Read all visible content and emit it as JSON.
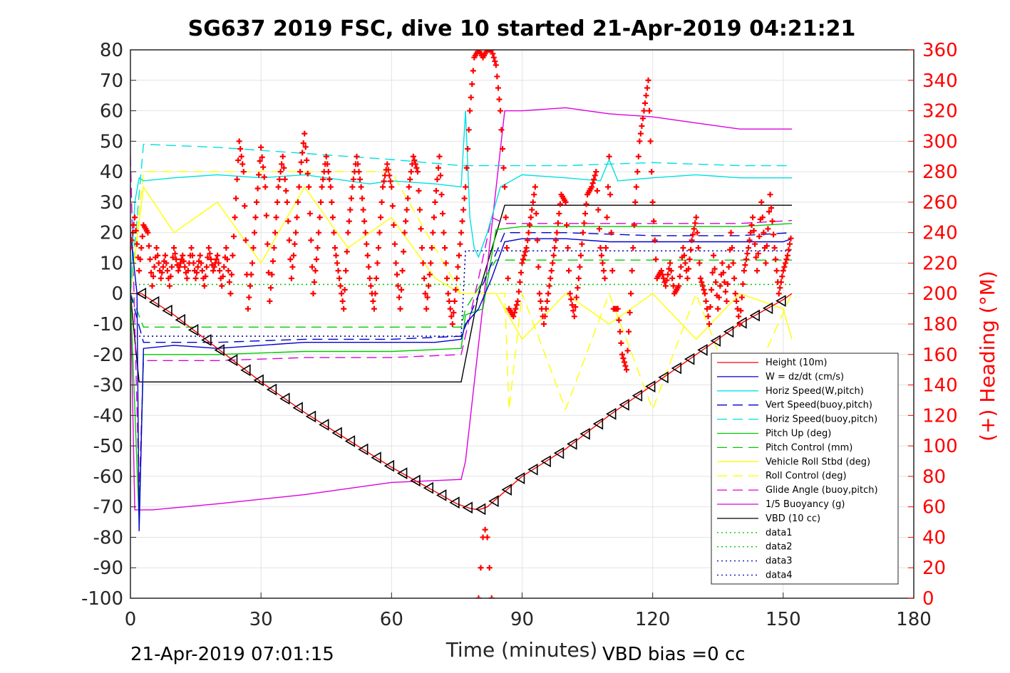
{
  "chart_data": {
    "type": "line",
    "title": "SG637 2019 FSC, dive 10 started 21-Apr-2019 04:21:21",
    "xlabel": "Time (minutes)",
    "ylabel_right": "(+) Heading (°M)",
    "xlim": [
      0,
      180
    ],
    "ylim": [
      -100,
      80
    ],
    "ylim_right": [
      0,
      360
    ],
    "x_ticks": [
      "0",
      "30",
      "60",
      "90",
      "120",
      "150",
      "180"
    ],
    "y_ticks": [
      "80",
      "70",
      "60",
      "50",
      "40",
      "30",
      "20",
      "10",
      "0",
      "-10",
      "-20",
      "-30",
      "-40",
      "-50",
      "-60",
      "-70",
      "-80",
      "-90",
      "-100"
    ],
    "y_ticks_right": [
      "360",
      "340",
      "320",
      "300",
      "280",
      "260",
      "240",
      "220",
      "200",
      "180",
      "160",
      "140",
      "120",
      "100",
      "80",
      "60",
      "40",
      "20",
      "0"
    ],
    "grid": true,
    "legend_position": "bottom-right",
    "footer_left": "21-Apr-2019 07:01:15",
    "footer_right": "VBD bias =0 cc",
    "series": [
      {
        "name": "Height (10m)",
        "color": "#ff0000",
        "style": "solid",
        "marker": "triangle",
        "x": [
          0,
          2.5,
          10,
          20,
          30,
          40,
          50,
          60,
          70,
          75,
          78,
          80,
          82,
          86,
          90,
          100,
          110,
          120,
          130,
          140,
          150,
          152
        ],
        "y": [
          0,
          0,
          -7,
          -18,
          -29,
          -39,
          -48,
          -57,
          -65,
          -69,
          -70.5,
          -71,
          -70,
          -65,
          -60,
          -51,
          -40,
          -30,
          -20,
          -10,
          -2,
          0
        ]
      },
      {
        "name": "W = dz/dt (cm/s)",
        "color": "#0000cc",
        "style": "solid",
        "x": [
          0,
          1.5,
          2,
          3,
          10,
          20,
          30,
          40,
          50,
          60,
          70,
          76,
          77,
          80,
          83,
          86,
          90,
          100,
          110,
          120,
          130,
          140,
          150,
          152
        ],
        "y": [
          20,
          0,
          -78,
          -18,
          -17,
          -18,
          -17,
          -16,
          -16,
          -16,
          -16,
          -15,
          -10,
          -5,
          5,
          17,
          18,
          18,
          17,
          17,
          17,
          17,
          17,
          18
        ]
      },
      {
        "name": "Horiz Speed(W,pitch)",
        "color": "#00e0e0",
        "style": "solid",
        "x": [
          0,
          1,
          2,
          3,
          10,
          20,
          30,
          40,
          50,
          55,
          60,
          70,
          76,
          77,
          78,
          79,
          80,
          82,
          85,
          90,
          100,
          108,
          110,
          112,
          120,
          130,
          140,
          150,
          152
        ],
        "y": [
          0,
          30,
          38,
          37,
          38,
          39,
          38,
          39,
          37,
          36,
          37,
          36,
          35,
          60,
          25,
          15,
          12,
          20,
          35,
          39,
          38,
          37,
          44,
          37,
          38,
          39,
          38,
          38,
          38
        ]
      },
      {
        "name": "Vert Speed(buoy,pitch)",
        "color": "#0000cc",
        "style": "dashed",
        "x": [
          0,
          3,
          20,
          40,
          60,
          76,
          86,
          100,
          120,
          140,
          152
        ],
        "y": [
          0,
          -16,
          -16,
          -15,
          -15,
          -14,
          20,
          20,
          19,
          19,
          20
        ]
      },
      {
        "name": "Horiz Speed(buoy,pitch)",
        "color": "#00e0e0",
        "style": "dashed",
        "x": [
          0,
          3,
          20,
          40,
          60,
          76,
          86,
          100,
          120,
          140,
          152
        ],
        "y": [
          0,
          49,
          48,
          46,
          44,
          42,
          42,
          42,
          43,
          42,
          42
        ]
      },
      {
        "name": "Pitch Up (deg)",
        "color": "#00cc00",
        "style": "solid",
        "x": [
          0,
          2,
          3,
          20,
          40,
          60,
          76,
          77,
          81,
          84,
          90,
          100,
          120,
          140,
          152
        ],
        "y": [
          0,
          -75,
          -20,
          -20,
          -19,
          -19,
          -18,
          -7,
          -5,
          21,
          22,
          22,
          22,
          22,
          23
        ]
      },
      {
        "name": "Pitch Control (mm)",
        "color": "#00cc00",
        "style": "dashed",
        "x": [
          0,
          3,
          76,
          77,
          84,
          152
        ],
        "y": [
          0,
          -11,
          -11,
          -5,
          11,
          11
        ]
      },
      {
        "name": "Vehicle Roll Stbd (deg)",
        "color": "#ffff00",
        "style": "solid",
        "x": [
          0,
          3,
          10,
          20,
          30,
          40,
          50,
          60,
          70,
          76,
          84,
          90,
          100,
          110,
          120,
          130,
          140,
          150,
          152
        ],
        "y": [
          0,
          35,
          20,
          30,
          10,
          35,
          15,
          25,
          5,
          0,
          0,
          -15,
          0,
          -10,
          0,
          -15,
          0,
          -5,
          -15
        ]
      },
      {
        "name": "Roll Control (deg)",
        "color": "#ffff00",
        "style": "dashed",
        "x": [
          0,
          3,
          20,
          40,
          60,
          76,
          86,
          87,
          90,
          100,
          110,
          120,
          130,
          140,
          152
        ],
        "y": [
          0,
          40,
          40,
          40,
          40,
          0,
          0,
          -38,
          0,
          -38,
          0,
          -38,
          0,
          -38,
          0
        ]
      },
      {
        "name": "Glide Angle (buoy,pitch)",
        "color": "#dd00dd",
        "style": "dashed",
        "x": [
          0,
          2,
          3,
          20,
          40,
          60,
          76,
          80,
          83,
          86,
          100,
          120,
          140,
          152
        ],
        "y": [
          45,
          -65,
          -22,
          -22,
          -21,
          -21,
          -20,
          5,
          25,
          23,
          23,
          23,
          23,
          24
        ]
      },
      {
        "name": "1/5 Buoyancy (g)",
        "color": "#dd00dd",
        "style": "solid",
        "x": [
          0,
          1,
          2,
          5,
          20,
          40,
          60,
          76,
          77,
          86,
          90,
          100,
          110,
          120,
          130,
          140,
          152
        ],
        "y": [
          0,
          -71,
          -71,
          -71,
          -69,
          -66,
          -62,
          -61,
          -55,
          60,
          60,
          61,
          59,
          58,
          56,
          54,
          54
        ]
      },
      {
        "name": "VBD (10 cc)",
        "color": "#000000",
        "style": "solid",
        "x": [
          0,
          1,
          2,
          3,
          30,
          60,
          76,
          80,
          86,
          100,
          120,
          140,
          152
        ],
        "y": [
          0,
          -15,
          -29,
          -29,
          -29,
          -29,
          -29,
          0,
          29,
          29,
          29,
          29,
          29
        ]
      },
      {
        "name": "data1",
        "color": "#00cc00",
        "style": "dotted",
        "x": [
          0,
          152
        ],
        "y": [
          3,
          3
        ]
      },
      {
        "name": "data2",
        "color": "#00cc00",
        "style": "dotted",
        "x": [
          0,
          152
        ],
        "y": [
          3,
          3
        ]
      },
      {
        "name": "data3",
        "color": "#0000aa",
        "style": "dotted",
        "x": [
          0,
          76,
          77,
          86,
          152
        ],
        "y": [
          -14,
          -14,
          14,
          14,
          14
        ]
      },
      {
        "name": "data4",
        "color": "#0000aa",
        "style": "dotted",
        "x": [
          0,
          76,
          77,
          86,
          152
        ],
        "y": [
          -14,
          -14,
          14,
          14,
          14
        ]
      }
    ],
    "heading_series": {
      "name": "Heading",
      "color": "#ff0000",
      "marker": "+",
      "axis": "right",
      "x": [
        0,
        1,
        2,
        3,
        4,
        5,
        6,
        7,
        8,
        9,
        10,
        11,
        12,
        13,
        14,
        15,
        16,
        17,
        18,
        19,
        20,
        21,
        22,
        23,
        24,
        25,
        26,
        27,
        28,
        29,
        30,
        31,
        32,
        33,
        34,
        35,
        36,
        37,
        38,
        39,
        40,
        41,
        42,
        43,
        44,
        45,
        46,
        47,
        48,
        49,
        50,
        51,
        52,
        53,
        54,
        55,
        56,
        57,
        58,
        59,
        60,
        61,
        62,
        63,
        64,
        65,
        66,
        67,
        68,
        69,
        70,
        71,
        72,
        73,
        74,
        75,
        76,
        77,
        78,
        79,
        80,
        81,
        82,
        83,
        84,
        85,
        86,
        87,
        88,
        89,
        90,
        91,
        92,
        93,
        94,
        95,
        96,
        97,
        98,
        99,
        100,
        101,
        102,
        103,
        104,
        105,
        106,
        107,
        108,
        109,
        110,
        111,
        112,
        113,
        114,
        115,
        116,
        117,
        118,
        119,
        120,
        121,
        122,
        123,
        124,
        125,
        126,
        127,
        128,
        129,
        130,
        131,
        132,
        133,
        134,
        135,
        136,
        137,
        138,
        139,
        140,
        141,
        142,
        143,
        144,
        145,
        146,
        147,
        148,
        149,
        150,
        151,
        152
      ],
      "y": [
        230,
        250,
        215,
        245,
        240,
        205,
        230,
        210,
        225,
        205,
        230,
        215,
        225,
        210,
        230,
        210,
        225,
        205,
        230,
        215,
        225,
        205,
        230,
        200,
        250,
        300,
        280,
        190,
        220,
        260,
        296,
        270,
        195,
        230,
        270,
        290,
        260,
        210,
        240,
        280,
        305,
        270,
        200,
        230,
        270,
        290,
        270,
        230,
        210,
        190,
        240,
        270,
        290,
        270,
        240,
        210,
        190,
        230,
        270,
        285,
        270,
        220,
        190,
        240,
        270,
        290,
        280,
        230,
        190,
        220,
        260,
        290,
        240,
        200,
        180,
        210,
        240,
        270,
        320,
        355,
        360,
        355,
        360,
        360,
        350,
        320,
        270,
        190,
        185,
        195,
        220,
        230,
        250,
        270,
        200,
        180,
        200,
        220,
        240,
        265,
        260,
        200,
        185,
        210,
        240,
        265,
        270,
        280,
        230,
        210,
        290,
        190,
        190,
        160,
        150,
        200,
        260,
        300,
        320,
        340,
        260,
        210,
        215,
        205,
        220,
        200,
        205,
        230,
        210,
        235,
        250,
        210,
        200,
        180,
        225,
        190,
        220,
        195,
        240,
        200,
        180,
        215,
        230,
        250,
        215,
        260,
        220,
        265,
        230,
        200,
        215,
        225,
        240
      ]
    }
  }
}
